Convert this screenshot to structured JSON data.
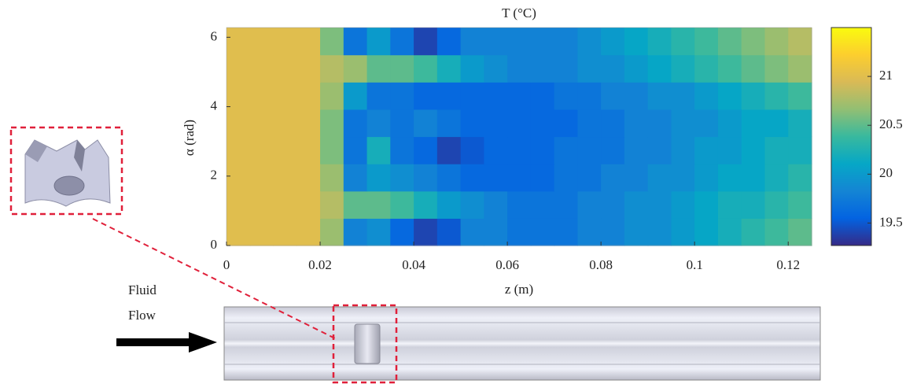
{
  "chart_data": {
    "type": "heatmap",
    "title": "T (°C)",
    "xlabel": "z (m)",
    "ylabel": "α (rad)",
    "x": [
      0.0025,
      0.0075,
      0.0125,
      0.0175,
      0.0225,
      0.0275,
      0.0325,
      0.0375,
      0.0425,
      0.0475,
      0.0525,
      0.0575,
      0.0625,
      0.0675,
      0.0725,
      0.0775,
      0.0825,
      0.0875,
      0.0925,
      0.0975,
      0.1025,
      0.1075,
      0.1125,
      0.1175,
      0.1225
    ],
    "y": [
      0.39,
      1.18,
      1.96,
      2.75,
      3.53,
      4.32,
      5.1,
      5.89
    ],
    "values": [
      [
        21.0,
        21.0,
        21.0,
        21.0,
        20.7,
        19.8,
        19.9,
        19.6,
        19.4,
        19.5,
        19.8,
        19.8,
        19.7,
        19.7,
        19.7,
        19.8,
        19.8,
        19.9,
        19.9,
        20.0,
        20.1,
        20.2,
        20.3,
        20.4,
        20.5
      ],
      [
        21.0,
        21.0,
        21.0,
        21.0,
        20.8,
        20.5,
        20.5,
        20.4,
        20.2,
        20.0,
        19.9,
        19.8,
        19.7,
        19.7,
        19.7,
        19.8,
        19.8,
        19.9,
        19.9,
        20.0,
        20.1,
        20.2,
        20.2,
        20.3,
        20.4
      ],
      [
        21.0,
        21.0,
        21.0,
        21.0,
        20.7,
        19.8,
        20.0,
        19.9,
        19.8,
        19.7,
        19.6,
        19.6,
        19.6,
        19.6,
        19.7,
        19.7,
        19.8,
        19.8,
        19.9,
        19.9,
        20.0,
        20.1,
        20.1,
        20.2,
        20.3
      ],
      [
        21.0,
        21.0,
        21.0,
        21.0,
        20.6,
        19.7,
        20.2,
        19.7,
        19.6,
        19.4,
        19.5,
        19.6,
        19.6,
        19.6,
        19.7,
        19.7,
        19.7,
        19.8,
        19.8,
        19.9,
        20.0,
        20.0,
        20.1,
        20.2,
        20.2
      ],
      [
        21.0,
        21.0,
        21.0,
        21.0,
        20.6,
        19.7,
        19.8,
        19.7,
        19.8,
        19.7,
        19.6,
        19.6,
        19.6,
        19.6,
        19.6,
        19.7,
        19.7,
        19.8,
        19.8,
        19.9,
        19.9,
        20.0,
        20.1,
        20.1,
        20.2
      ],
      [
        21.0,
        21.0,
        21.0,
        21.0,
        20.7,
        20.0,
        19.7,
        19.7,
        19.6,
        19.6,
        19.6,
        19.6,
        19.6,
        19.6,
        19.7,
        19.7,
        19.8,
        19.8,
        19.9,
        19.9,
        20.0,
        20.1,
        20.2,
        20.3,
        20.4
      ],
      [
        21.0,
        21.0,
        21.0,
        21.0,
        20.8,
        20.7,
        20.5,
        20.5,
        20.4,
        20.2,
        20.0,
        19.9,
        19.8,
        19.8,
        19.8,
        19.9,
        19.9,
        20.0,
        20.1,
        20.2,
        20.3,
        20.4,
        20.5,
        20.6,
        20.7
      ],
      [
        21.0,
        21.0,
        21.0,
        21.0,
        20.6,
        19.7,
        20.0,
        19.7,
        19.4,
        19.6,
        19.8,
        19.8,
        19.8,
        19.8,
        19.8,
        19.9,
        20.0,
        20.1,
        20.2,
        20.3,
        20.4,
        20.5,
        20.6,
        20.7,
        20.8
      ]
    ],
    "xlim": [
      0,
      0.125
    ],
    "ylim": [
      0,
      6.28
    ],
    "xticks": [
      0,
      0.02,
      0.04,
      0.06,
      0.08,
      0.1,
      0.12
    ],
    "yticks": [
      0,
      2,
      4,
      6
    ],
    "clim": [
      19.27,
      21.5
    ],
    "cticks": [
      19.5,
      20,
      20.5,
      21
    ],
    "colormap": [
      "#352a87",
      "#0363e1",
      "#1485d4",
      "#06a7c6",
      "#38b99e",
      "#92bf73",
      "#d9ba56",
      "#fcce2e",
      "#f9fb0e"
    ]
  },
  "diagram": {
    "flow_label": [
      "Fluid",
      "Flow"
    ]
  }
}
